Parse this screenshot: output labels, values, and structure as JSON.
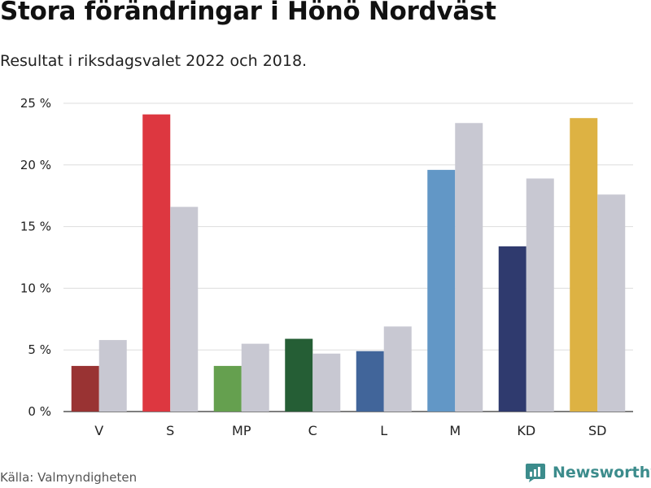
{
  "title": "Stora förändringar i Hönö Nordväst",
  "subtitle": "Resultat i riksdagsvalet 2022 och 2018.",
  "source": "Källa: Valmyndigheten",
  "brand": {
    "name": "Newsworthy",
    "icon": "newsworthy-logo-icon",
    "color": "#3c8c8c"
  },
  "chart_data": {
    "type": "bar",
    "categories": [
      "V",
      "S",
      "MP",
      "C",
      "L",
      "M",
      "KD",
      "SD"
    ],
    "series": [
      {
        "values": [
          3.7,
          24.1,
          3.7,
          5.9,
          4.9,
          19.6,
          13.4,
          23.8
        ],
        "colors": [
          "#993333",
          "#dd3740",
          "#65a04f",
          "#255e35",
          "#41659a",
          "#6297c6",
          "#2f3a6e",
          "#ddb243"
        ]
      },
      {
        "values": [
          5.8,
          16.6,
          5.5,
          4.7,
          6.9,
          23.4,
          18.9,
          17.6
        ],
        "color": "#c8c8d2"
      }
    ],
    "ylim": [
      0,
      25
    ],
    "yticks": [
      0,
      5,
      10,
      15,
      20,
      25
    ],
    "ytick_labels": [
      "0 %",
      "5 %",
      "10 %",
      "15 %",
      "20 %",
      "25 %"
    ],
    "grid": true,
    "gridcolor": "#dddddd"
  }
}
